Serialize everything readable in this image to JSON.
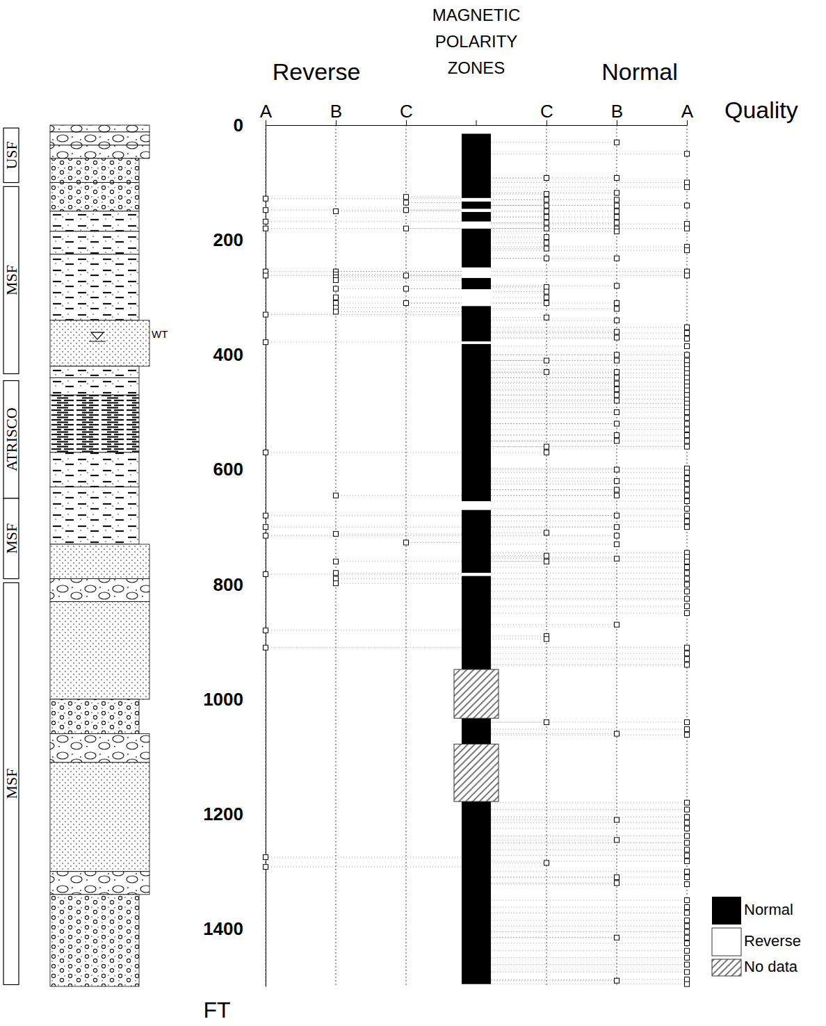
{
  "chart_data": {
    "type": "log",
    "title": "MAGNETIC POLARITY ZONES",
    "x_label": "Quality",
    "y_label": "FT",
    "annotations": [
      "Reverse",
      "Normal"
    ],
    "xlim": [
      -3,
      3
    ],
    "xticks": [
      {
        "value": -3,
        "label": "A"
      },
      {
        "value": -2,
        "label": "B"
      },
      {
        "value": -1,
        "label": "C"
      },
      {
        "value": 1,
        "label": "C"
      },
      {
        "value": 2,
        "label": "B"
      },
      {
        "value": 3,
        "label": "A"
      }
    ],
    "ylim": [
      0,
      1500
    ],
    "yticks": [
      0,
      200,
      400,
      600,
      800,
      1000,
      1200,
      1400
    ],
    "grid": true,
    "legend": "lower right",
    "marker": "square",
    "series": [
      {
        "name": "Normal",
        "color": "#000000",
        "values": [
          [
            15,
            127
          ],
          [
            133,
            146
          ],
          [
            151,
            168
          ],
          [
            180,
            248
          ],
          [
            266,
            286
          ],
          [
            315,
            377
          ],
          [
            381,
            655
          ],
          [
            670,
            780
          ],
          [
            785,
            948
          ],
          [
            1033,
            1078
          ],
          [
            1178,
            1496
          ]
        ]
      },
      {
        "name": "Reverse",
        "color": "#ffffff",
        "values": [
          [
            127,
            133
          ],
          [
            146,
            151
          ],
          [
            168,
            180
          ],
          [
            248,
            266
          ],
          [
            286,
            315
          ],
          [
            377,
            381
          ],
          [
            655,
            670
          ],
          [
            780,
            785
          ]
        ]
      },
      {
        "name": "No data",
        "color": "#555555",
        "values": [
          [
            948,
            1033
          ],
          [
            1078,
            1178
          ]
        ]
      }
    ],
    "points": [
      [
        -3,
        128
      ],
      [
        -3,
        148
      ],
      [
        -3,
        168
      ],
      [
        -3,
        180
      ],
      [
        -3,
        255
      ],
      [
        -3,
        262
      ],
      [
        -3,
        330
      ],
      [
        -3,
        378
      ],
      [
        -3,
        570
      ],
      [
        -3,
        680
      ],
      [
        -3,
        700
      ],
      [
        -3,
        715
      ],
      [
        -3,
        782
      ],
      [
        -3,
        880
      ],
      [
        -3,
        910
      ],
      [
        -3,
        1275
      ],
      [
        -3,
        1292
      ],
      [
        -2,
        150
      ],
      [
        -2,
        255
      ],
      [
        -2,
        260
      ],
      [
        -2,
        265
      ],
      [
        -2,
        270
      ],
      [
        -2,
        285
      ],
      [
        -2,
        300
      ],
      [
        -2,
        310
      ],
      [
        -2,
        318
      ],
      [
        -2,
        325
      ],
      [
        -2,
        645
      ],
      [
        -2,
        712
      ],
      [
        -2,
        760
      ],
      [
        -2,
        780
      ],
      [
        -2,
        790
      ],
      [
        -2,
        798
      ],
      [
        -1,
        125
      ],
      [
        -1,
        135
      ],
      [
        -1,
        148
      ],
      [
        -1,
        180
      ],
      [
        -1,
        262
      ],
      [
        -1,
        285
      ],
      [
        -1,
        310
      ],
      [
        -1,
        727
      ],
      [
        1,
        92
      ],
      [
        1,
        120
      ],
      [
        1,
        130
      ],
      [
        1,
        140
      ],
      [
        1,
        150
      ],
      [
        1,
        160
      ],
      [
        1,
        170
      ],
      [
        1,
        180
      ],
      [
        1,
        195
      ],
      [
        1,
        205
      ],
      [
        1,
        215
      ],
      [
        1,
        232
      ],
      [
        1,
        282
      ],
      [
        1,
        290
      ],
      [
        1,
        300
      ],
      [
        1,
        310
      ],
      [
        1,
        335
      ],
      [
        1,
        410
      ],
      [
        1,
        430
      ],
      [
        1,
        560
      ],
      [
        1,
        570
      ],
      [
        1,
        710
      ],
      [
        1,
        750
      ],
      [
        1,
        760
      ],
      [
        1,
        890
      ],
      [
        1,
        895
      ],
      [
        1,
        1040
      ],
      [
        1,
        1285
      ],
      [
        2,
        30
      ],
      [
        2,
        92
      ],
      [
        2,
        118
      ],
      [
        2,
        130
      ],
      [
        2,
        140
      ],
      [
        2,
        150
      ],
      [
        2,
        160
      ],
      [
        2,
        170
      ],
      [
        2,
        180
      ],
      [
        2,
        185
      ],
      [
        2,
        232
      ],
      [
        2,
        280
      ],
      [
        2,
        310
      ],
      [
        2,
        320
      ],
      [
        2,
        340
      ],
      [
        2,
        360
      ],
      [
        2,
        370
      ],
      [
        2,
        400
      ],
      [
        2,
        410
      ],
      [
        2,
        430
      ],
      [
        2,
        440
      ],
      [
        2,
        450
      ],
      [
        2,
        460
      ],
      [
        2,
        470
      ],
      [
        2,
        480
      ],
      [
        2,
        500
      ],
      [
        2,
        520
      ],
      [
        2,
        540
      ],
      [
        2,
        550
      ],
      [
        2,
        600
      ],
      [
        2,
        620
      ],
      [
        2,
        635
      ],
      [
        2,
        645
      ],
      [
        2,
        680
      ],
      [
        2,
        700
      ],
      [
        2,
        715
      ],
      [
        2,
        730
      ],
      [
        2,
        755
      ],
      [
        2,
        870
      ],
      [
        2,
        1060
      ],
      [
        2,
        1210
      ],
      [
        2,
        1245
      ],
      [
        2,
        1310
      ],
      [
        2,
        1320
      ],
      [
        2,
        1415
      ],
      [
        2,
        1490
      ],
      [
        3,
        50
      ],
      [
        3,
        100
      ],
      [
        3,
        108
      ],
      [
        3,
        140
      ],
      [
        3,
        172
      ],
      [
        3,
        180
      ],
      [
        3,
        212
      ],
      [
        3,
        218
      ],
      [
        3,
        255
      ],
      [
        3,
        262
      ],
      [
        3,
        352
      ],
      [
        3,
        362
      ],
      [
        3,
        372
      ],
      [
        3,
        385
      ],
      [
        3,
        400
      ],
      [
        3,
        410
      ],
      [
        3,
        418
      ],
      [
        3,
        425
      ],
      [
        3,
        432
      ],
      [
        3,
        440
      ],
      [
        3,
        448
      ],
      [
        3,
        455
      ],
      [
        3,
        462
      ],
      [
        3,
        470
      ],
      [
        3,
        478
      ],
      [
        3,
        485
      ],
      [
        3,
        492
      ],
      [
        3,
        500
      ],
      [
        3,
        510
      ],
      [
        3,
        520
      ],
      [
        3,
        530
      ],
      [
        3,
        540
      ],
      [
        3,
        550
      ],
      [
        3,
        560
      ],
      [
        3,
        598
      ],
      [
        3,
        605
      ],
      [
        3,
        615
      ],
      [
        3,
        625
      ],
      [
        3,
        635
      ],
      [
        3,
        645
      ],
      [
        3,
        655
      ],
      [
        3,
        668
      ],
      [
        3,
        680
      ],
      [
        3,
        690
      ],
      [
        3,
        700
      ],
      [
        3,
        745
      ],
      [
        3,
        752
      ],
      [
        3,
        760
      ],
      [
        3,
        770
      ],
      [
        3,
        780
      ],
      [
        3,
        790
      ],
      [
        3,
        800
      ],
      [
        3,
        812
      ],
      [
        3,
        825
      ],
      [
        3,
        838
      ],
      [
        3,
        850
      ],
      [
        3,
        910
      ],
      [
        3,
        920
      ],
      [
        3,
        930
      ],
      [
        3,
        940
      ],
      [
        3,
        1040
      ],
      [
        3,
        1052
      ],
      [
        3,
        1062
      ],
      [
        3,
        1180
      ],
      [
        3,
        1192
      ],
      [
        3,
        1205
      ],
      [
        3,
        1215
      ],
      [
        3,
        1225
      ],
      [
        3,
        1238
      ],
      [
        3,
        1250
      ],
      [
        3,
        1262
      ],
      [
        3,
        1272
      ],
      [
        3,
        1282
      ],
      [
        3,
        1300
      ],
      [
        3,
        1310
      ],
      [
        3,
        1322
      ],
      [
        3,
        1350
      ],
      [
        3,
        1362
      ],
      [
        3,
        1372
      ],
      [
        3,
        1385
      ],
      [
        3,
        1395
      ],
      [
        3,
        1405
      ],
      [
        3,
        1415
      ],
      [
        3,
        1425
      ],
      [
        3,
        1438
      ],
      [
        3,
        1450
      ],
      [
        3,
        1462
      ],
      [
        3,
        1475
      ],
      [
        3,
        1488
      ],
      [
        3,
        1496
      ]
    ],
    "formations": [
      {
        "label": "USF",
        "top": 5,
        "bottom": 100
      },
      {
        "label": "MSF",
        "top": 107,
        "bottom": 433
      },
      {
        "label": "ATRISCO",
        "top": 445,
        "bottom": 650
      },
      {
        "label": "MSF",
        "top": 650,
        "bottom": 790
      },
      {
        "label": "MSF",
        "top": 797,
        "bottom": 1497
      }
    ],
    "lithology": [
      {
        "top": 0,
        "bottom": 12,
        "type": "gravel"
      },
      {
        "top": 12,
        "bottom": 35,
        "type": "gravel"
      },
      {
        "top": 35,
        "bottom": 58,
        "type": "gravel"
      },
      {
        "top": 58,
        "bottom": 100,
        "type": "pebbly"
      },
      {
        "top": 100,
        "bottom": 150,
        "type": "pebbly"
      },
      {
        "top": 150,
        "bottom": 185,
        "type": "silt"
      },
      {
        "top": 185,
        "bottom": 225,
        "type": "silt"
      },
      {
        "top": 225,
        "bottom": 340,
        "type": "silt"
      },
      {
        "top": 340,
        "bottom": 420,
        "type": "sand"
      },
      {
        "top": 420,
        "bottom": 440,
        "type": "silt"
      },
      {
        "top": 440,
        "bottom": 470,
        "type": "silt"
      },
      {
        "top": 470,
        "bottom": 570,
        "type": "clay"
      },
      {
        "top": 570,
        "bottom": 630,
        "type": "silt"
      },
      {
        "top": 630,
        "bottom": 730,
        "type": "silt"
      },
      {
        "top": 730,
        "bottom": 790,
        "type": "sand"
      },
      {
        "top": 790,
        "bottom": 830,
        "type": "gravel"
      },
      {
        "top": 830,
        "bottom": 1000,
        "type": "sand"
      },
      {
        "top": 1000,
        "bottom": 1060,
        "type": "pebbly"
      },
      {
        "top": 1060,
        "bottom": 1110,
        "type": "gravel"
      },
      {
        "top": 1110,
        "bottom": 1300,
        "type": "sand"
      },
      {
        "top": 1300,
        "bottom": 1340,
        "type": "gravel"
      },
      {
        "top": 1340,
        "bottom": 1500,
        "type": "pebbly"
      }
    ],
    "water_table": {
      "label": "WT",
      "depth": 373
    }
  }
}
